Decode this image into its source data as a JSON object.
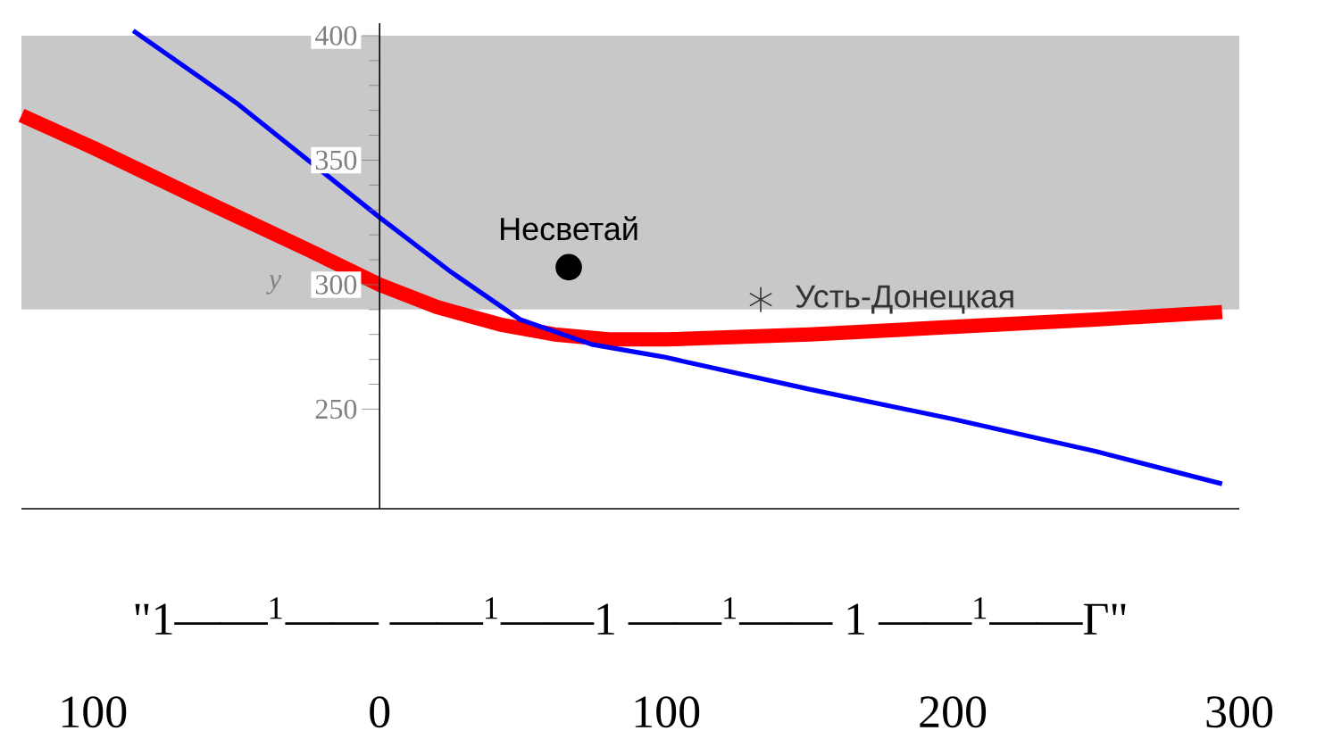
{
  "chart_data": {
    "type": "line",
    "ylabel": "y",
    "xlim": [
      -125,
      300
    ],
    "ylim": [
      210,
      405
    ],
    "xticks": [
      {
        "value": -100,
        "label": "100"
      },
      0,
      100,
      200,
      300
    ],
    "yticks": [
      250,
      300,
      350,
      400
    ],
    "grid": false,
    "series": [
      {
        "color": "#ff0000",
        "x": [
          -125,
          -100,
          -62,
          -25,
          0,
          20,
          42,
          61,
          80,
          100,
          150,
          200,
          250,
          294
        ],
        "values": [
          368,
          355,
          334,
          314,
          300,
          291,
          284,
          280,
          278,
          278,
          280,
          283,
          286,
          289
        ]
      },
      {
        "color": "#0000ff",
        "x": [
          -86,
          -50,
          0,
          25,
          49,
          74,
          99,
          150,
          200,
          250,
          294
        ],
        "values": [
          402,
          373,
          327,
          305,
          286,
          276,
          271,
          258,
          246,
          233,
          220
        ]
      },
      {
        "type": "scatter",
        "name": "Несветай",
        "color": "#000000",
        "marker": "circle",
        "x": [
          66
        ],
        "values": [
          307
        ]
      },
      {
        "type": "scatter",
        "name": "Усть-Донецкая",
        "color": "#333333",
        "marker": "cross",
        "x": [
          133
        ],
        "values": [
          294
        ]
      }
    ],
    "bands": [
      {
        "axis": "y",
        "from": 290,
        "to": 400,
        "color": "#c8c8c8"
      }
    ],
    "annotations": [
      "\"1——$^{1}$—— ——$^{1}$——1 ——$^{1}$—— 1 ——$^{1}$——Г\""
    ]
  }
}
